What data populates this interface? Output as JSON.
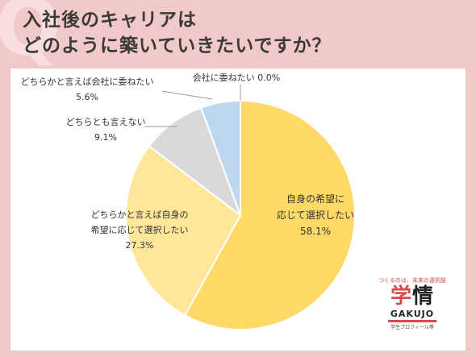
{
  "title_lines": [
    "入社後のキャリアは",
    "どのように築いていきたいですか？"
  ],
  "chart_data": {
    "type": "pie",
    "slices": [
      {
        "label_lines": [
          "自身の希望に",
          "応じて選択したい"
        ],
        "value": 58.1,
        "value_text": "58.1%",
        "color": "#ffd966"
      },
      {
        "label_lines": [
          "どちらかと言えば自身の",
          "希望に応じて選択したい"
        ],
        "value": 27.3,
        "value_text": "27.3%",
        "color": "#ffe699"
      },
      {
        "label_lines": [
          "どちらとも言えない"
        ],
        "value": 9.1,
        "value_text": "9.1%",
        "color": "#d9d9d9"
      },
      {
        "label_lines": [
          "どちらかと言えば会社に委ねたい"
        ],
        "value": 5.6,
        "value_text": "5.6%",
        "color": "#bdd7ee"
      },
      {
        "label_lines": [
          "会社に委ねたい 0.0%"
        ],
        "value": 0.0,
        "value_text": "",
        "color": "#9dc3e6"
      }
    ]
  },
  "logo": {
    "tagline": "つくるのは、未来の選択肢",
    "kanji_a": "学",
    "kanji_b": "情",
    "brand": "GAKUJO",
    "sub": "学生プロフィール等"
  }
}
